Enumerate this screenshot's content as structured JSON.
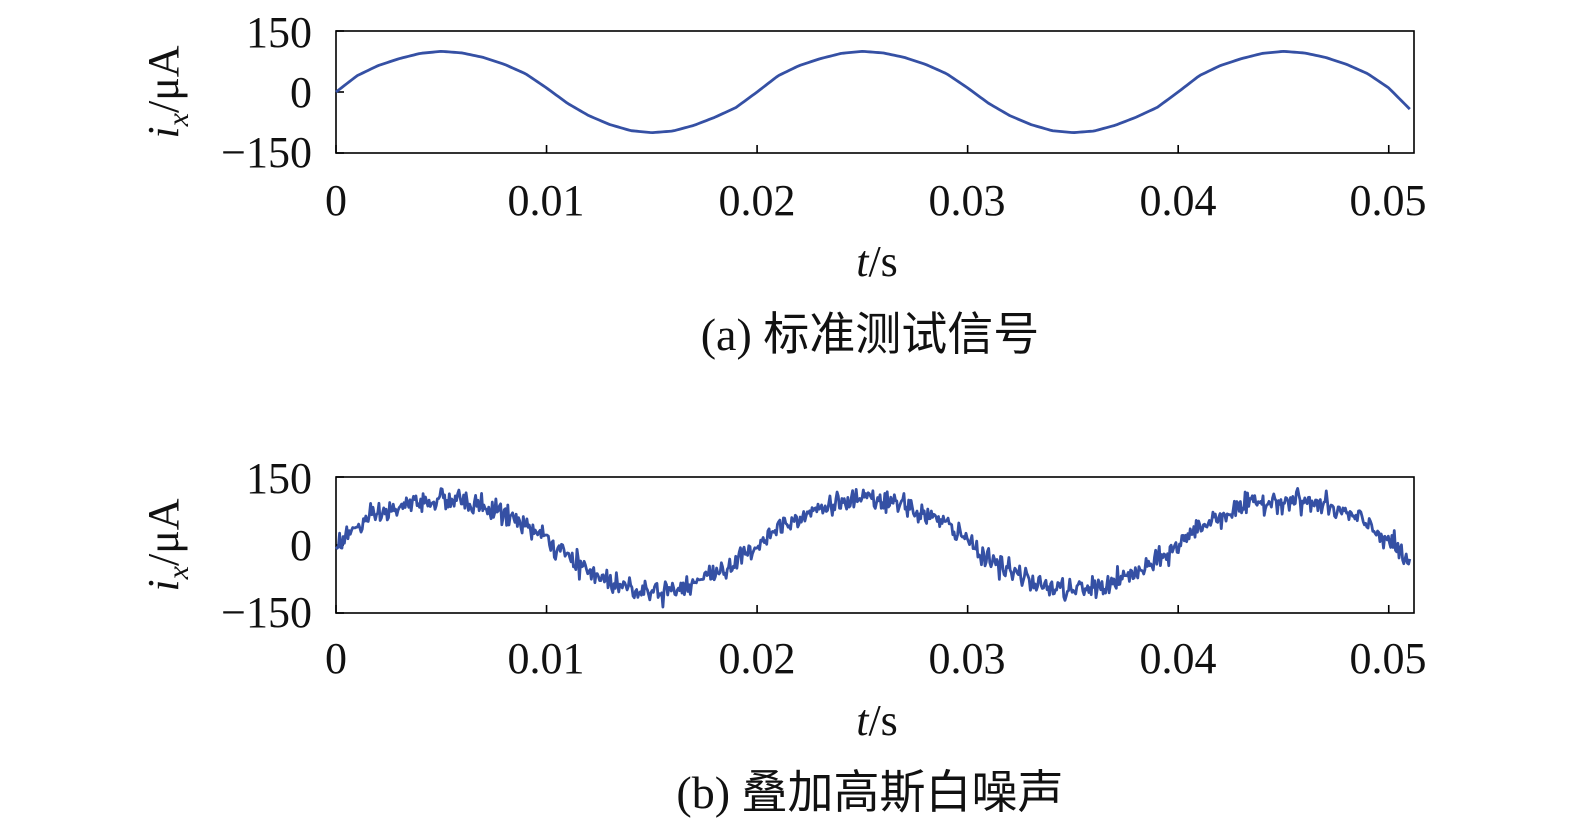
{
  "figure": {
    "caption_a": "(a) 标准测试信号",
    "caption_b": "(b) 叠加高斯白噪声",
    "line_color": "#3550a4"
  },
  "chart_data": [
    {
      "type": "line",
      "title": "",
      "xlabel": {
        "var": "t",
        "unit": "/s"
      },
      "ylabel": {
        "var": "i",
        "sub": "x",
        "unit": "/μA"
      },
      "xlim": [
        0,
        0.0512
      ],
      "ylim": [
        -150,
        150
      ],
      "xticks": [
        0,
        0.01,
        0.02,
        0.03,
        0.04,
        0.05
      ],
      "xtick_labels": [
        "0",
        "0.01",
        "0.02",
        "0.03",
        "0.04",
        "0.05"
      ],
      "yticks": [
        -150,
        0,
        150
      ],
      "ytick_labels": [
        "−150",
        "0",
        "150"
      ],
      "grid": false,
      "series": [
        {
          "x": [
            0,
            0.001,
            0.002,
            0.003,
            0.004,
            0.005,
            0.006,
            0.007,
            0.008,
            0.009,
            0.01,
            0.011,
            0.012,
            0.013,
            0.014,
            0.015,
            0.016,
            0.017,
            0.018,
            0.019,
            0.02,
            0.021,
            0.022,
            0.023,
            0.024,
            0.025,
            0.026,
            0.027,
            0.028,
            0.029,
            0.03,
            0.031,
            0.032,
            0.033,
            0.034,
            0.035,
            0.036,
            0.037,
            0.038,
            0.039,
            0.04,
            0.041,
            0.042,
            0.043,
            0.044,
            0.045,
            0.046,
            0.047,
            0.048,
            0.049,
            0.05,
            0.051
          ],
          "y": [
            0,
            40,
            65,
            82,
            95,
            100,
            96,
            85,
            68,
            45,
            10,
            -28,
            -58,
            -80,
            -95,
            -100,
            -96,
            -82,
            -62,
            -38,
            0,
            40,
            65,
            82,
            95,
            100,
            96,
            85,
            68,
            45,
            10,
            -28,
            -58,
            -80,
            -95,
            -100,
            -96,
            -82,
            -62,
            -38,
            0,
            40,
            65,
            82,
            95,
            100,
            96,
            85,
            68,
            45,
            10,
            -42
          ]
        }
      ]
    },
    {
      "type": "line",
      "title": "",
      "xlabel": {
        "var": "t",
        "unit": "/s"
      },
      "ylabel": {
        "var": "i",
        "sub": "x",
        "unit": "/μA"
      },
      "xlim": [
        0,
        0.0512
      ],
      "ylim": [
        -150,
        150
      ],
      "xticks": [
        0,
        0.01,
        0.02,
        0.03,
        0.04,
        0.05
      ],
      "xtick_labels": [
        "0",
        "0.01",
        "0.02",
        "0.03",
        "0.04",
        "0.05"
      ],
      "yticks": [
        -150,
        0,
        150
      ],
      "ytick_labels": [
        "−150",
        "0",
        "150"
      ],
      "grid": false,
      "noise": "gaussian white noise, std ≈ 12 μA",
      "series": [
        {
          "x": [
            0,
            0.001,
            0.002,
            0.003,
            0.004,
            0.005,
            0.006,
            0.007,
            0.008,
            0.009,
            0.01,
            0.011,
            0.012,
            0.013,
            0.014,
            0.015,
            0.016,
            0.017,
            0.018,
            0.019,
            0.02,
            0.021,
            0.022,
            0.023,
            0.024,
            0.025,
            0.026,
            0.027,
            0.028,
            0.029,
            0.03,
            0.031,
            0.032,
            0.033,
            0.034,
            0.035,
            0.036,
            0.037,
            0.038,
            0.039,
            0.04,
            0.041,
            0.042,
            0.043,
            0.044,
            0.045,
            0.046,
            0.047,
            0.048,
            0.049,
            0.05,
            0.051
          ],
          "y": [
            0,
            40,
            65,
            82,
            95,
            100,
            96,
            85,
            68,
            45,
            10,
            -28,
            -58,
            -80,
            -95,
            -100,
            -96,
            -82,
            -62,
            -38,
            0,
            40,
            65,
            82,
            95,
            100,
            96,
            85,
            68,
            45,
            10,
            -28,
            -58,
            -80,
            -95,
            -100,
            -96,
            -82,
            -62,
            -38,
            0,
            40,
            65,
            82,
            95,
            100,
            96,
            85,
            68,
            45,
            10,
            -42
          ]
        }
      ]
    }
  ]
}
